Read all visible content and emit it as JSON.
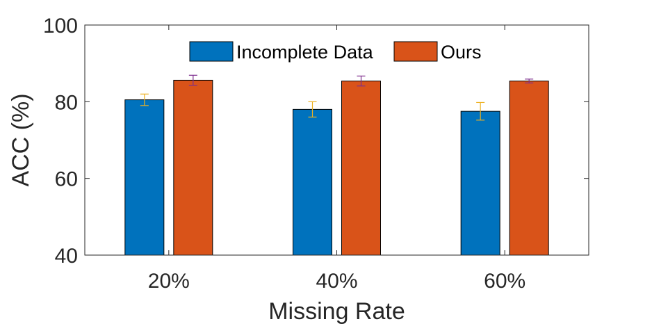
{
  "chart_data": {
    "type": "bar",
    "title": "",
    "xlabel": "Missing Rate",
    "ylabel": "ACC (%)",
    "categories": [
      "20%",
      "40%",
      "60%"
    ],
    "ylim": [
      40,
      100
    ],
    "yticks": [
      40,
      60,
      80,
      100
    ],
    "grid": false,
    "legend_position": "top-center",
    "series": [
      {
        "name": "Incomplete Data",
        "color": "#0072BD",
        "values": [
          80.5,
          78.0,
          77.5
        ],
        "errors": [
          1.5,
          2.0,
          2.3
        ],
        "error_color": "#EDB120"
      },
      {
        "name": "Ours",
        "color": "#D95319",
        "values": [
          85.6,
          85.4,
          85.4
        ],
        "errors": [
          1.3,
          1.3,
          0.5
        ],
        "error_color": "#7E2F8E"
      }
    ]
  }
}
